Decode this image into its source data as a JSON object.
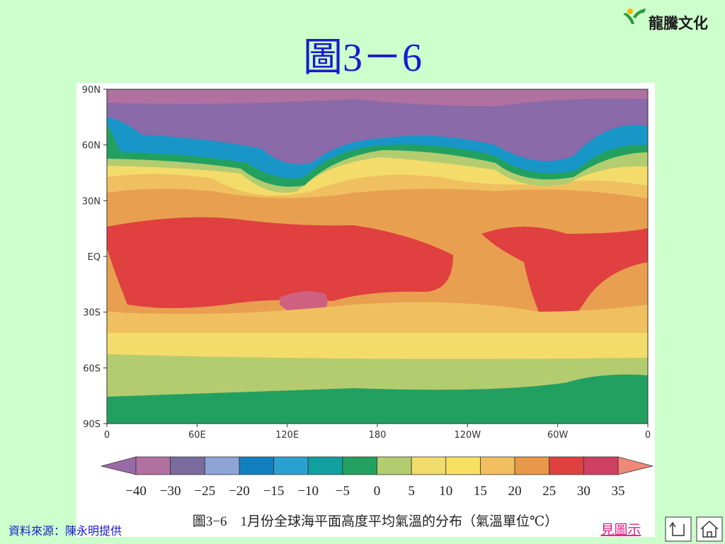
{
  "logo": {
    "text": "龍騰文化"
  },
  "title": "圖3－6",
  "figure": {
    "y_labels": [
      "90N",
      "60N",
      "30N",
      "EQ",
      "30S",
      "60S",
      "90S"
    ],
    "x_labels": [
      "0",
      "60E",
      "120E",
      "180",
      "120W",
      "60W",
      "0"
    ],
    "colorbar_labels": [
      "−40",
      "−30",
      "−25",
      "−20",
      "−15",
      "−10",
      "−5",
      "0",
      "5",
      "10",
      "15",
      "20",
      "25",
      "30",
      "35"
    ],
    "caption": "圖3−6　1月份全球海平面高度平均氣溫的分布（氣溫單位℃）"
  },
  "source": "資料來源：陳永明提供",
  "link": "見圖示"
}
